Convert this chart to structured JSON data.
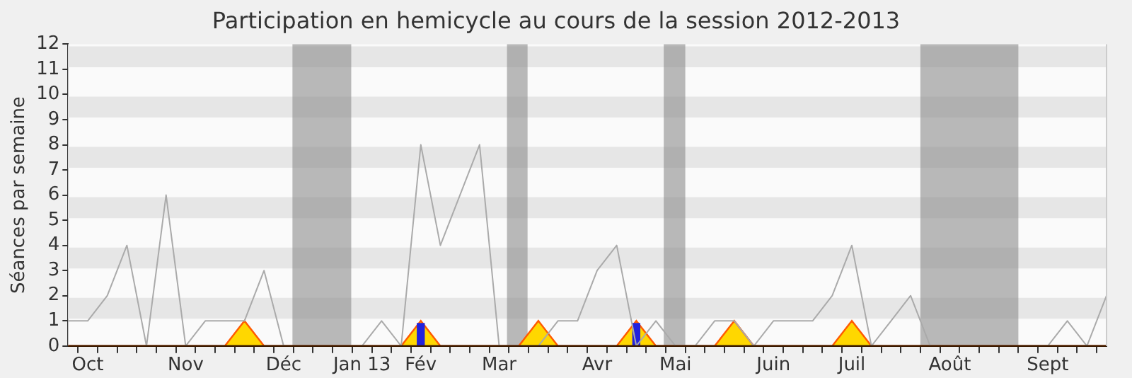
{
  "chart_data": {
    "type": "line",
    "title": "Participation en hemicycle au cours de la session 2012-2013",
    "ylabel": "Séances par semaine",
    "categories": [
      null,
      "Oct",
      null,
      null,
      null,
      null,
      "Nov",
      null,
      null,
      null,
      null,
      "Déc",
      null,
      null,
      null,
      "Jan 13",
      null,
      null,
      "Fév",
      null,
      null,
      null,
      "Mar",
      null,
      null,
      null,
      null,
      "Avr",
      null,
      null,
      null,
      "Mai",
      null,
      null,
      null,
      null,
      "Juin",
      null,
      null,
      null,
      "Juil",
      null,
      null,
      null,
      null,
      "Août",
      null,
      null,
      null,
      null,
      "Sept",
      null,
      null,
      null
    ],
    "series": [
      {
        "type": "area",
        "color": "#ffd700",
        "values": [
          0,
          0,
          0,
          0,
          0,
          0,
          0,
          0,
          0,
          1,
          0,
          0,
          0,
          0,
          0,
          0,
          0,
          0,
          1,
          0,
          0,
          0,
          0,
          0,
          1,
          0,
          0,
          0,
          0,
          1,
          0,
          0,
          0,
          0,
          1,
          0,
          0,
          0,
          0,
          0,
          1,
          0,
          0,
          0,
          0,
          0,
          0,
          0,
          0,
          0,
          0,
          0,
          0,
          0
        ]
      },
      {
        "type": "bar",
        "color": "#2222dd",
        "values": [
          null,
          null,
          null,
          null,
          null,
          null,
          null,
          null,
          null,
          null,
          null,
          null,
          null,
          null,
          null,
          null,
          null,
          null,
          0.9,
          null,
          null,
          null,
          null,
          null,
          null,
          null,
          null,
          null,
          null,
          0.9,
          null,
          null,
          null,
          null,
          null,
          null,
          null,
          null,
          null,
          null,
          null,
          null,
          null,
          null,
          null,
          null,
          null,
          null,
          null,
          null,
          null,
          null,
          null,
          null
        ]
      },
      {
        "color": "#aaaaaa",
        "values": [
          1,
          1,
          2,
          4,
          0,
          6,
          0,
          1,
          1,
          1,
          3,
          0,
          0,
          0,
          0,
          0,
          1,
          0,
          8,
          4,
          6,
          8,
          0,
          0,
          0,
          1,
          1,
          3,
          4,
          0,
          1,
          0,
          0,
          1,
          1,
          0,
          1,
          1,
          1,
          2,
          4,
          0,
          1,
          2,
          0,
          0,
          0,
          0,
          0,
          0,
          0,
          1,
          0,
          2
        ]
      }
    ],
    "ylim": [
      0,
      12
    ],
    "yticks": [
      0,
      1,
      2,
      3,
      4,
      5,
      6,
      7,
      8,
      9,
      10,
      11,
      12
    ],
    "legend": false,
    "marker": "none",
    "line_style": "solid"
  }
}
